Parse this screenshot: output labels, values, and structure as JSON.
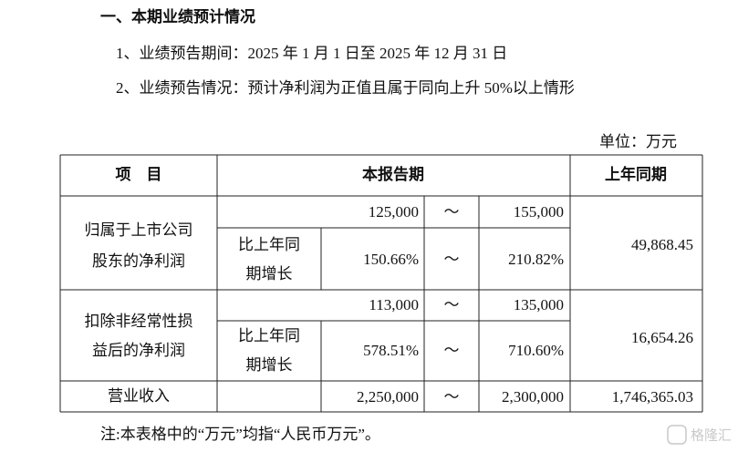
{
  "header": {
    "title": "一、本期业绩预计情况"
  },
  "paragraphs": [
    "1、业绩预告期间：2025 年 1 月 1 日至 2025 年 12 月 31 日",
    "2、业绩预告情况：预计净利润为正值且属于同向上升 50%以上情形"
  ],
  "unit": "单位：万元",
  "table": {
    "headers": [
      "项　目",
      "本报告期",
      "上年同期"
    ],
    "rows": [
      {
        "label": [
          "归属于上市公司",
          "股东的净利润"
        ],
        "range": [
          "125,000",
          "～",
          "155,000"
        ],
        "growth_label": [
          "比上年同",
          "期增长"
        ],
        "growth": [
          "150.66%",
          "～",
          "210.82%"
        ],
        "prior": "49,868.45"
      },
      {
        "label": [
          "扣除非经常性损",
          "益后的净利润"
        ],
        "range": [
          "113,000",
          "～",
          "135,000"
        ],
        "growth_label": [
          "比上年同",
          "期增长"
        ],
        "growth": [
          "578.51%",
          "～",
          "710.60%"
        ],
        "prior": "16,654.26"
      },
      {
        "label": [
          "营业收入"
        ],
        "range": [
          "2,250,000",
          "～",
          "2,300,000"
        ],
        "prior": "1,746,365.03"
      }
    ]
  },
  "note": "注:本表格中的“万元”均指“人民币万元”。",
  "watermark": "格隆汇"
}
